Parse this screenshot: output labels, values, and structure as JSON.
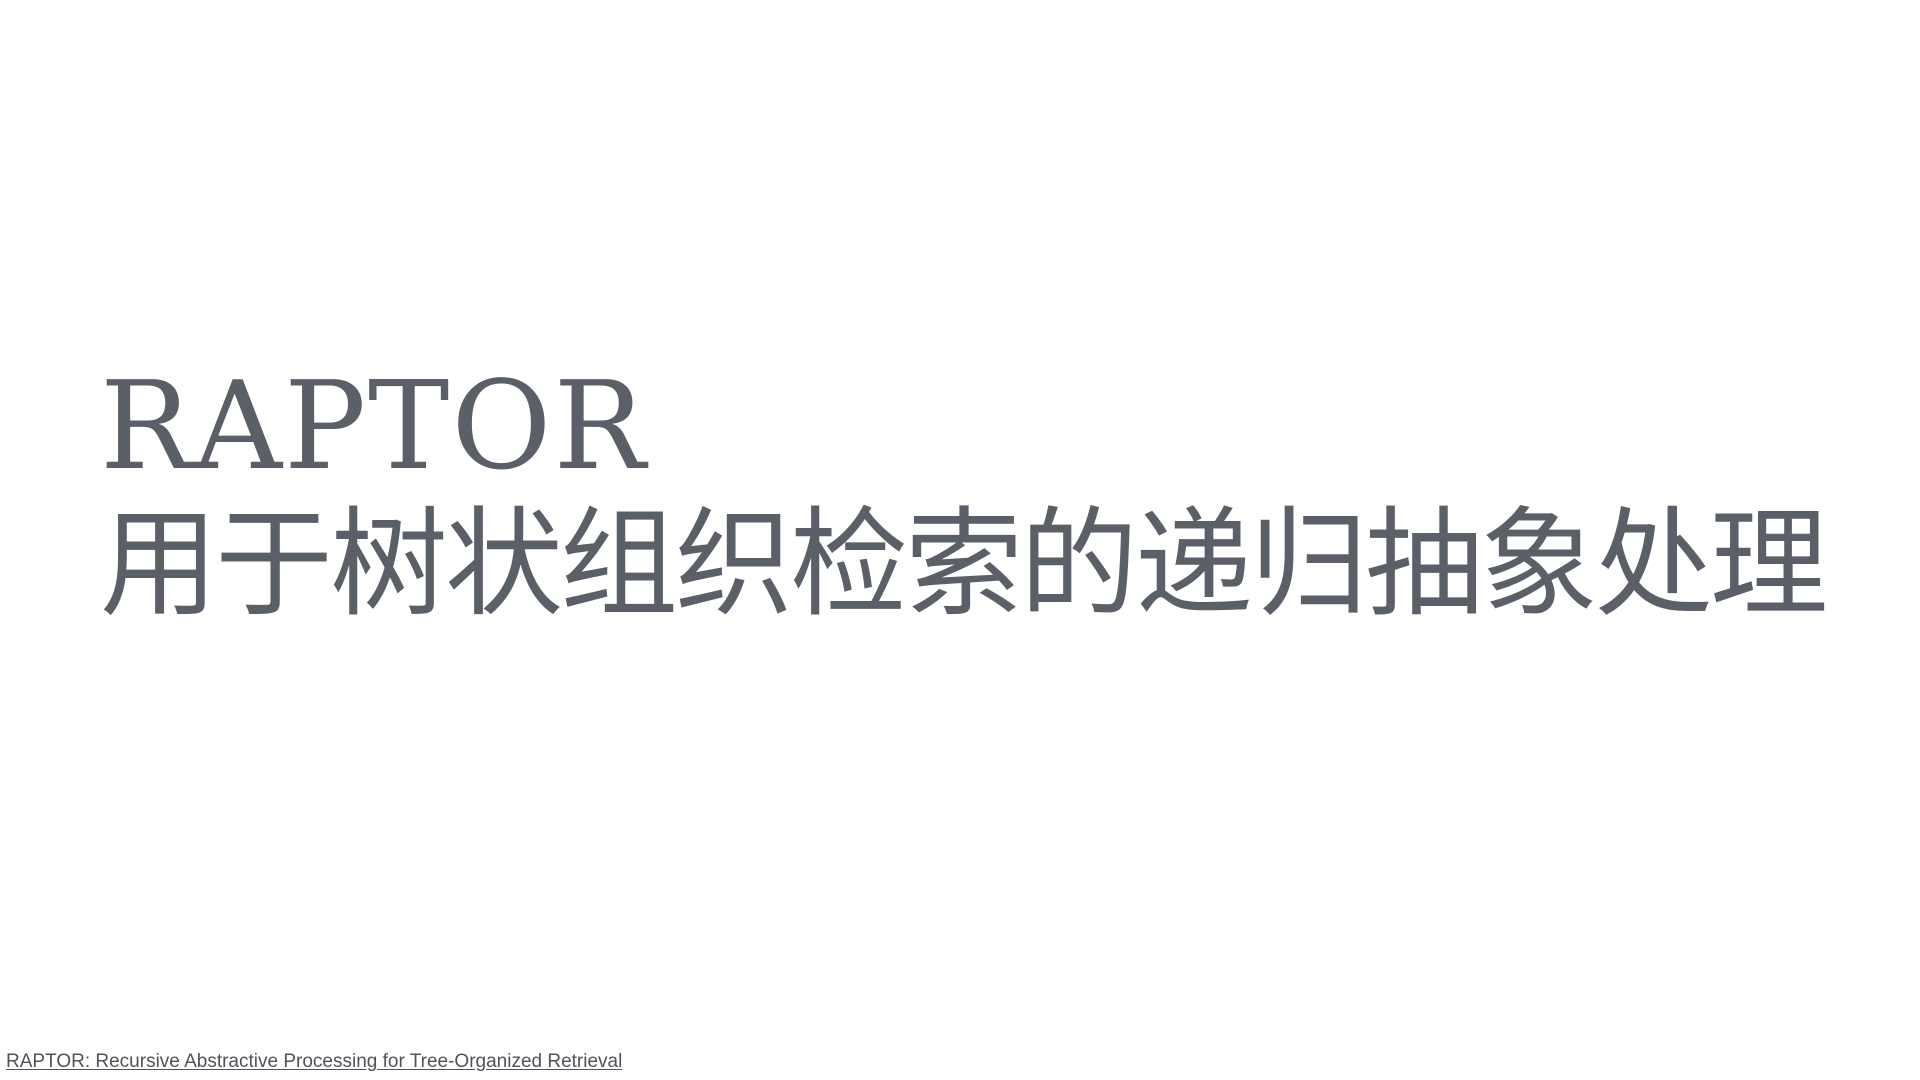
{
  "slide": {
    "title_en": "RAPTOR",
    "title_zh": "用于树状组织检索的递归抽象处理",
    "source_link_text": "RAPTOR: Recursive Abstractive Processing for Tree-Organized Retrieval"
  },
  "colors": {
    "background": "#ffffff",
    "title_text": "#5b6068",
    "link_text": "#4e535b"
  }
}
